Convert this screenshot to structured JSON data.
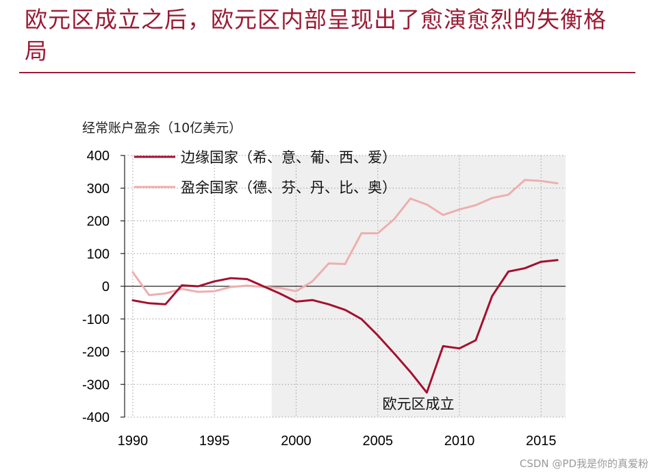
{
  "slide": {
    "title": "欧元区成立之后，欧元区内部呈现出了愈演愈烈的失衡格局",
    "watermark": "CSDN @PD我是你的真爱粉",
    "accent_color": "#9a1b34"
  },
  "chart_data": {
    "type": "line",
    "title": "",
    "ylabel": "经常账户盈余（10亿美元）",
    "xlabel": "",
    "xlim": [
      1989.5,
      2016.5
    ],
    "ylim": [
      -400,
      400
    ],
    "yticks": [
      400,
      300,
      200,
      100,
      0,
      -100,
      -200,
      -300,
      -400
    ],
    "xticks": [
      1990,
      1995,
      2000,
      2005,
      2010,
      2015
    ],
    "grid": "dotted",
    "legend_position": "top-left",
    "shaded_region": {
      "from": 1998.5,
      "to": 2016.5,
      "color": "#efefef"
    },
    "annotation": {
      "text": "欧元区成立",
      "x": 2007,
      "y": -360
    },
    "series": [
      {
        "name": "边缘国家（希、意、葡、西、爱）",
        "color": "#a4102f",
        "x": [
          1990,
          1991,
          1992,
          1993,
          1994,
          1995,
          1996,
          1997,
          1998,
          1999,
          2000,
          2001,
          2002,
          2003,
          2004,
          2005,
          2006,
          2007,
          2008,
          2009,
          2010,
          2011,
          2012,
          2013,
          2014,
          2015,
          2016
        ],
        "values": [
          -43,
          -52,
          -55,
          3,
          0,
          15,
          25,
          22,
          0,
          -22,
          -47,
          -42,
          -55,
          -72,
          -100,
          -150,
          -205,
          -262,
          -325,
          -183,
          -190,
          -165,
          -30,
          45,
          55,
          75,
          80
        ]
      },
      {
        "name": "盈余国家（德、芬、丹、比、奥）",
        "color": "#eeaeae",
        "x": [
          1990,
          1991,
          1992,
          1993,
          1994,
          1995,
          1996,
          1997,
          1998,
          1999,
          2000,
          2001,
          2002,
          2003,
          2004,
          2005,
          2006,
          2007,
          2008,
          2009,
          2010,
          2011,
          2012,
          2013,
          2014,
          2015,
          2016
        ],
        "values": [
          43,
          -27,
          -22,
          -8,
          -17,
          -15,
          -2,
          2,
          -2,
          -5,
          -15,
          15,
          70,
          68,
          162,
          162,
          205,
          268,
          250,
          218,
          235,
          248,
          270,
          280,
          325,
          322,
          315
        ]
      }
    ]
  }
}
